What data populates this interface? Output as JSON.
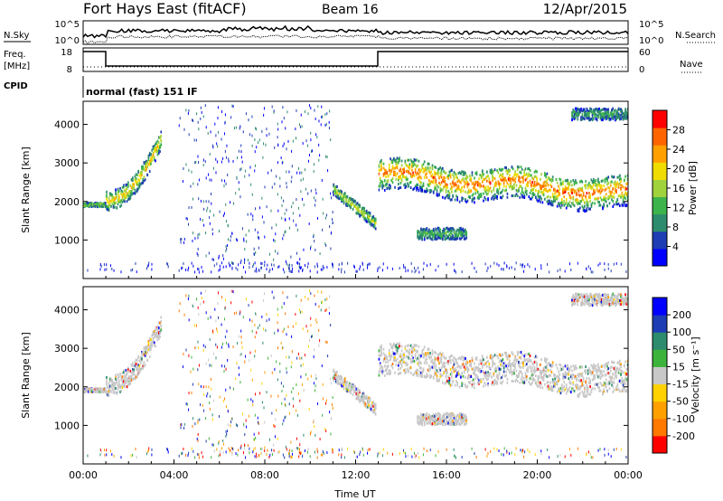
{
  "header": {
    "title": "Fort Hays East (fitACF)",
    "beam": "Beam 16",
    "date": "12/Apr/2015"
  },
  "side_labels": {
    "nsky": "N.Sky",
    "freq": "Freq.",
    "freq_unit": "[MHz]",
    "cpid": "CPID",
    "nsearch": "N.Search",
    "nave": "Nave"
  },
  "cpid_text": "normal (fast) 151 IF",
  "noise_ticks_left": [
    "10^5",
    "10^0"
  ],
  "noise_ticks_right": [
    "10^5",
    "10^0"
  ],
  "freq_ticks": [
    "18",
    "8"
  ],
  "nave_ticks": [
    "60",
    "0"
  ],
  "colors": {
    "axis": "#000000",
    "power_scale": [
      "#0000ff",
      "#1e3cb4",
      "#2d8c6e",
      "#3cb44b",
      "#a0d23c",
      "#f0dc00",
      "#ffa000",
      "#ff6400",
      "#ff0000"
    ],
    "velocity_scale": [
      "#ff0000",
      "#ff7800",
      "#ffa000",
      "#ffd200",
      "#c8c8c8",
      "#3cb43c",
      "#2d8c6e",
      "#1e3cb4",
      "#0000ff"
    ]
  },
  "chart_data": [
    {
      "type": "heatmap",
      "parameter": "power",
      "xlabel": "",
      "ylabel": "Slant Range [km]",
      "x_ticks": [
        "00:00",
        "04:00",
        "08:00",
        "12:00",
        "16:00",
        "20:00",
        "00:00"
      ],
      "xlim_hours": [
        0,
        24
      ],
      "y_ticks": [
        "1000",
        "2000",
        "3000",
        "4000"
      ],
      "ylim": [
        0,
        4600
      ],
      "colorbar_label": "Power [dB]",
      "colorbar_ticks": [
        "4",
        "8",
        "12",
        "16",
        "20",
        "24",
        "28"
      ],
      "colorbar_range": [
        0,
        32
      ],
      "scatter_regions": [
        {
          "t_start": 0.0,
          "t_end": 1.0,
          "range_start": 1850,
          "range_end": 1950,
          "peak": 12
        },
        {
          "t_start": 1.0,
          "t_end": 3.4,
          "range_start": 1700,
          "range_end": 3900,
          "peak": 18
        },
        {
          "t_start": 11.0,
          "t_end": 12.9,
          "range_start": 1300,
          "range_end": 2400,
          "peak": 14
        },
        {
          "t_start": 13.0,
          "t_end": 24.0,
          "range_start": 1700,
          "range_end": 3300,
          "peak": 24
        },
        {
          "t_start": 14.7,
          "t_end": 16.9,
          "range_start": 1000,
          "range_end": 1300,
          "peak": 8
        },
        {
          "t_start": 21.5,
          "t_end": 24.0,
          "range_start": 4100,
          "range_end": 4400,
          "peak": 6
        }
      ]
    },
    {
      "type": "heatmap",
      "parameter": "velocity",
      "xlabel": "Time UT",
      "ylabel": "Slant Range [km]",
      "x_ticks": [
        "00:00",
        "04:00",
        "08:00",
        "12:00",
        "16:00",
        "20:00",
        "00:00"
      ],
      "xlim_hours": [
        0,
        24
      ],
      "y_ticks": [
        "1000",
        "2000",
        "3000",
        "4000"
      ],
      "ylim": [
        0,
        4600
      ],
      "colorbar_label": "Velocity [m s⁻¹]",
      "colorbar_ticks": [
        "200",
        "100",
        "50",
        "15",
        "-15",
        "-50",
        "-100",
        "-200"
      ],
      "colorbar_range": [
        -250,
        250
      ]
    }
  ]
}
